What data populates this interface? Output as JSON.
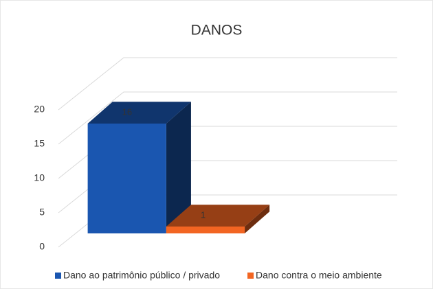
{
  "chart_data": {
    "type": "bar3d",
    "title": "DANOS",
    "categories": [
      null
    ],
    "series": [
      {
        "name": "Dano ao patrimônio público / privado",
        "color": "#1a56b0",
        "values": [
          16
        ]
      },
      {
        "name": "Dano contra o meio ambiente",
        "color": "#f26522",
        "values": [
          1
        ]
      }
    ],
    "ylim": [
      0,
      20
    ],
    "yticks": [
      0,
      5,
      10,
      15,
      20
    ],
    "grid": true,
    "legend": "bottom"
  }
}
